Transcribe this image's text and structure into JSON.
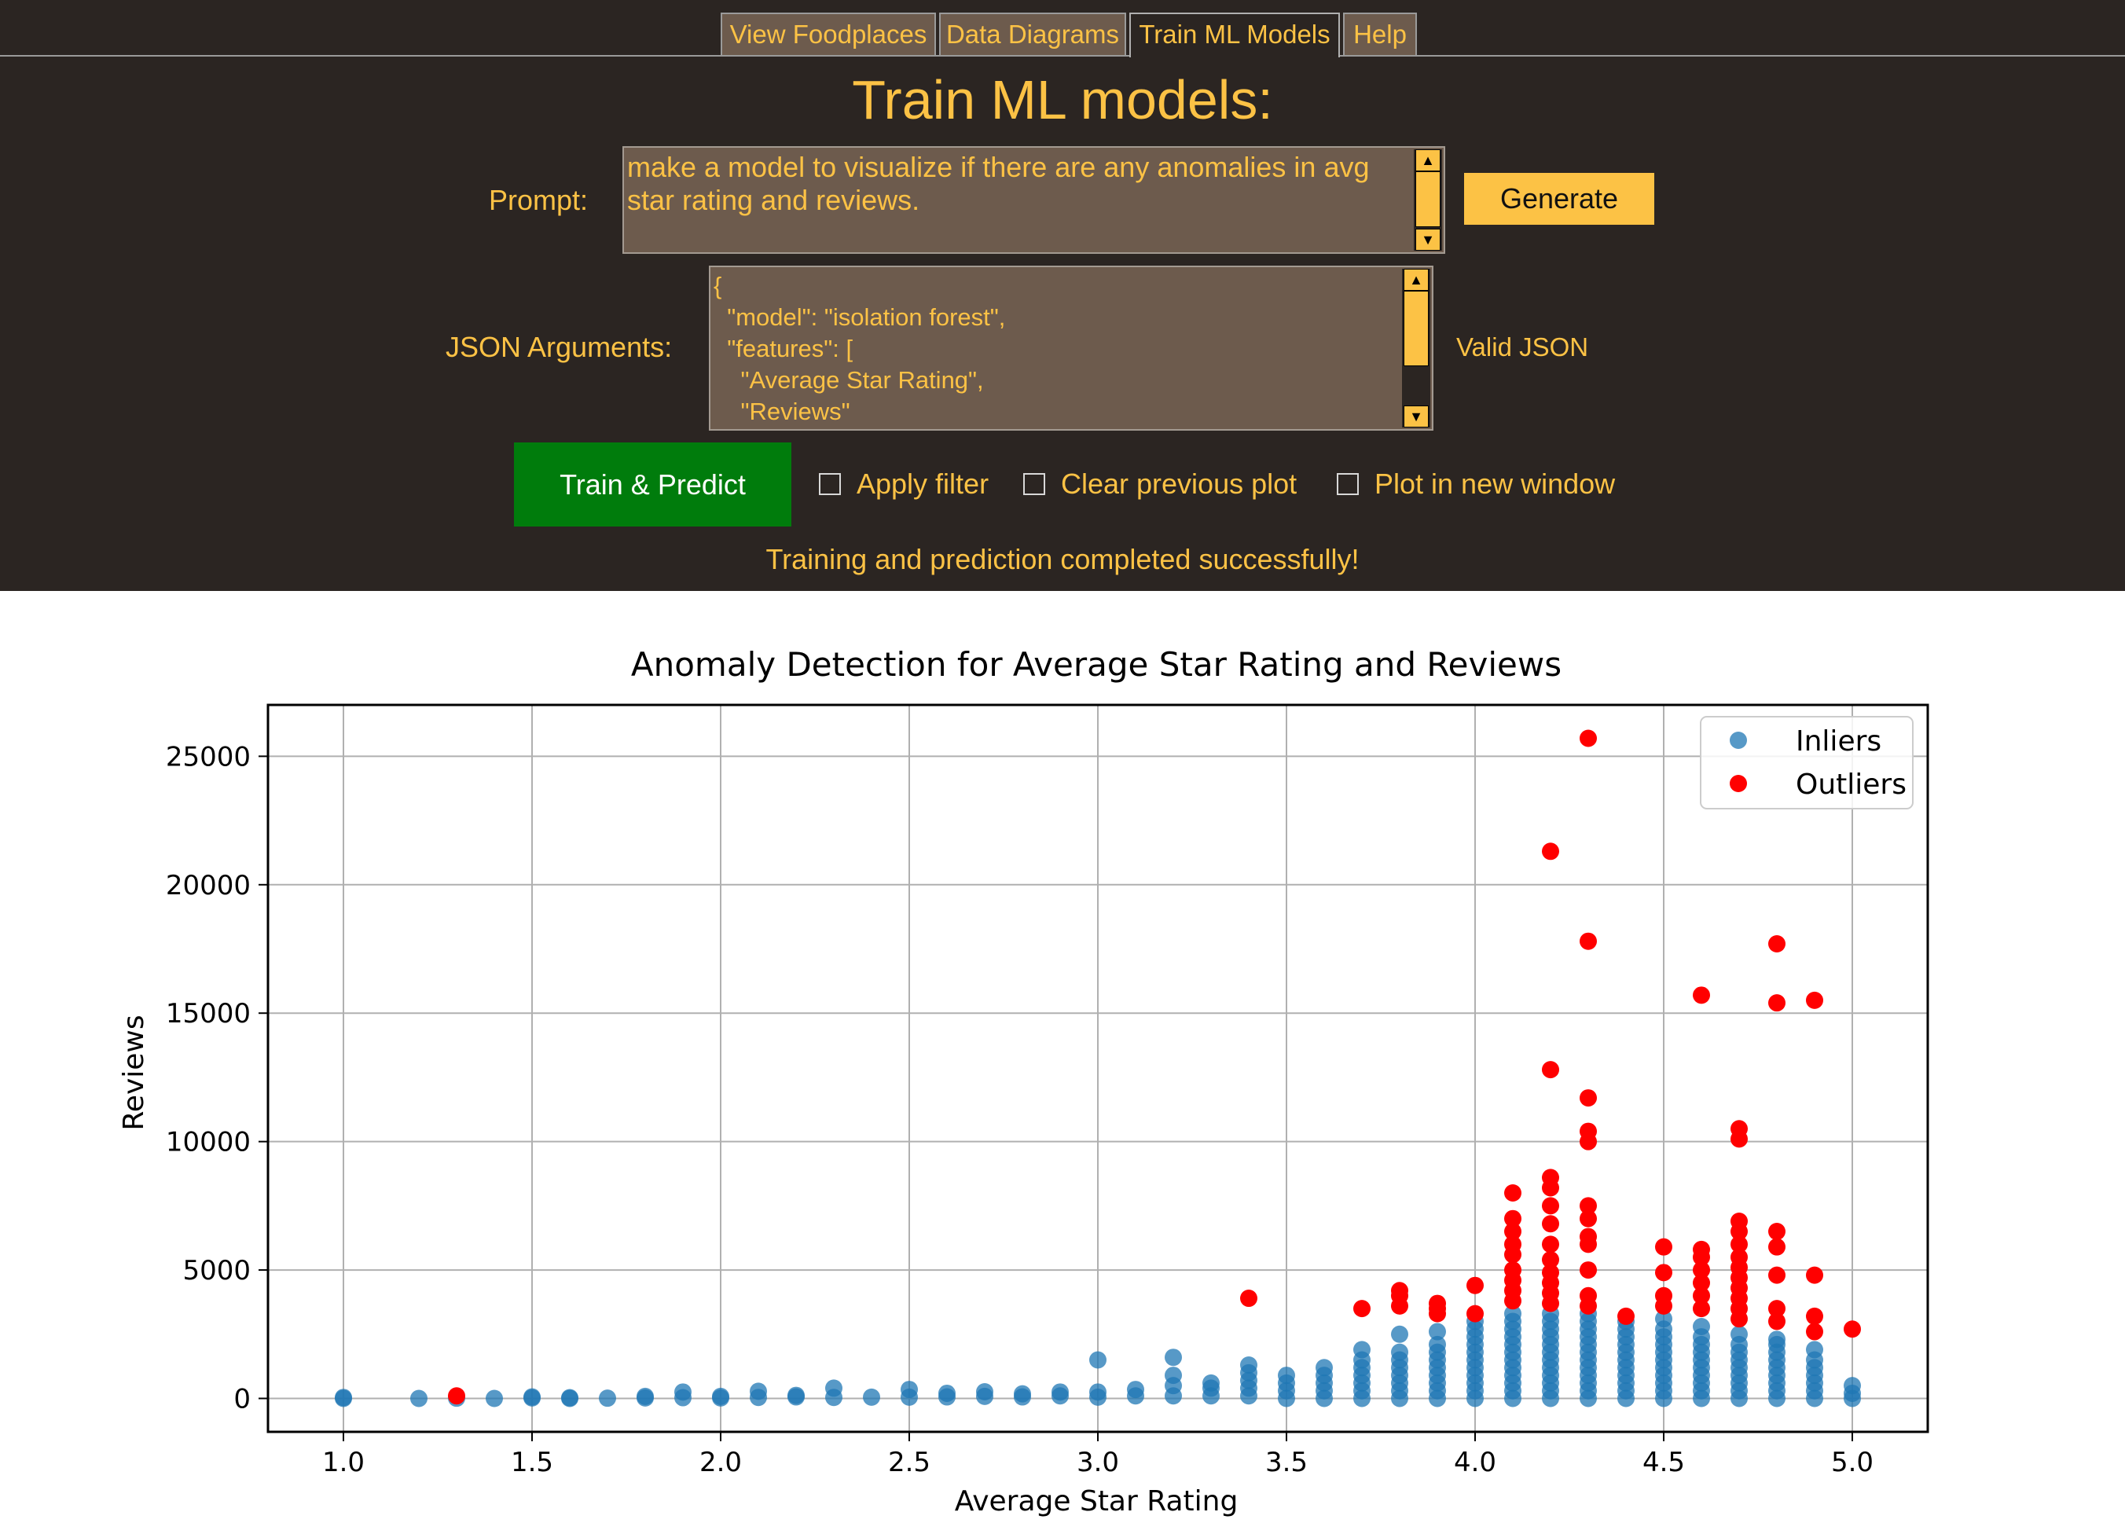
{
  "tabs": [
    {
      "label": "View Foodplaces",
      "active": false
    },
    {
      "label": "Data Diagrams",
      "active": false
    },
    {
      "label": "Train ML Models",
      "active": true
    },
    {
      "label": "Help",
      "active": false
    }
  ],
  "page_title": "Train ML models:",
  "prompt": {
    "label": "Prompt:",
    "value": "make a model to visualize if there are any anomalies in avg star rating and reviews."
  },
  "generate_label": "Generate",
  "json_args": {
    "label": "JSON Arguments:",
    "value": "{\n  \"model\": \"isolation forest\",\n  \"features\": [\n    \"Average Star Rating\",\n    \"Reviews\"",
    "status": "Valid JSON"
  },
  "train_label": "Train & Predict",
  "checkboxes": [
    {
      "label": "Apply filter",
      "checked": false
    },
    {
      "label": "Clear previous plot",
      "checked": false
    },
    {
      "label": "Plot in new window",
      "checked": false
    }
  ],
  "status_message": "Training and prediction completed successfully!",
  "colors": {
    "panel_bg": "#2b2522",
    "accent": "#fcc245",
    "field_bg": "#6d5b4d",
    "train_button": "#007c0c",
    "inlier": "#1f77b4",
    "outlier": "#ff0000"
  },
  "chart_data": {
    "type": "scatter",
    "title": "Anomaly Detection for Average Star Rating and Reviews",
    "xlabel": "Average Star Rating",
    "ylabel": "Reviews",
    "xlim": [
      0.8,
      5.2
    ],
    "ylim": [
      -1300,
      27000
    ],
    "xticks": [
      "1.0",
      "1.5",
      "2.0",
      "2.5",
      "3.0",
      "3.5",
      "4.0",
      "4.5",
      "5.0"
    ],
    "yticks": [
      "0",
      "5000",
      "10000",
      "15000",
      "20000",
      "25000"
    ],
    "grid": true,
    "legend_position": "top-right",
    "series": [
      {
        "name": "Inliers",
        "color": "#1f77b4",
        "alpha": 0.75,
        "points": [
          [
            1.0,
            0
          ],
          [
            1.0,
            40
          ],
          [
            1.2,
            0
          ],
          [
            1.3,
            10
          ],
          [
            1.4,
            0
          ],
          [
            1.5,
            20
          ],
          [
            1.5,
            60
          ],
          [
            1.6,
            0
          ],
          [
            1.6,
            30
          ],
          [
            1.7,
            10
          ],
          [
            1.8,
            20
          ],
          [
            1.8,
            80
          ],
          [
            1.9,
            30
          ],
          [
            1.9,
            250
          ],
          [
            2.0,
            20
          ],
          [
            2.0,
            80
          ],
          [
            2.1,
            40
          ],
          [
            2.1,
            280
          ],
          [
            2.2,
            60
          ],
          [
            2.2,
            120
          ],
          [
            2.3,
            40
          ],
          [
            2.3,
            400
          ],
          [
            2.4,
            50
          ],
          [
            2.5,
            50
          ],
          [
            2.5,
            350
          ],
          [
            2.6,
            60
          ],
          [
            2.6,
            200
          ],
          [
            2.7,
            80
          ],
          [
            2.7,
            260
          ],
          [
            2.8,
            60
          ],
          [
            2.8,
            180
          ],
          [
            2.9,
            100
          ],
          [
            2.9,
            250
          ],
          [
            3.0,
            50
          ],
          [
            3.0,
            250
          ],
          [
            3.0,
            1500
          ],
          [
            3.1,
            100
          ],
          [
            3.1,
            350
          ],
          [
            3.2,
            100
          ],
          [
            3.2,
            500
          ],
          [
            3.2,
            900
          ],
          [
            3.2,
            1600
          ],
          [
            3.3,
            100
          ],
          [
            3.3,
            400
          ],
          [
            3.3,
            600
          ],
          [
            3.4,
            100
          ],
          [
            3.4,
            400
          ],
          [
            3.4,
            700
          ],
          [
            3.4,
            1000
          ],
          [
            3.4,
            1300
          ],
          [
            3.5,
            0
          ],
          [
            3.5,
            300
          ],
          [
            3.5,
            600
          ],
          [
            3.5,
            900
          ],
          [
            3.6,
            0
          ],
          [
            3.6,
            300
          ],
          [
            3.6,
            600
          ],
          [
            3.6,
            900
          ],
          [
            3.6,
            1200
          ],
          [
            3.7,
            0
          ],
          [
            3.7,
            300
          ],
          [
            3.7,
            600
          ],
          [
            3.7,
            900
          ],
          [
            3.7,
            1200
          ],
          [
            3.7,
            1500
          ],
          [
            3.7,
            1900
          ],
          [
            3.8,
            0
          ],
          [
            3.8,
            300
          ],
          [
            3.8,
            600
          ],
          [
            3.8,
            900
          ],
          [
            3.8,
            1200
          ],
          [
            3.8,
            1500
          ],
          [
            3.8,
            1800
          ],
          [
            3.8,
            2500
          ],
          [
            3.9,
            0
          ],
          [
            3.9,
            300
          ],
          [
            3.9,
            600
          ],
          [
            3.9,
            900
          ],
          [
            3.9,
            1200
          ],
          [
            3.9,
            1500
          ],
          [
            3.9,
            1800
          ],
          [
            3.9,
            2100
          ],
          [
            3.9,
            2600
          ],
          [
            4.0,
            0
          ],
          [
            4.0,
            300
          ],
          [
            4.0,
            600
          ],
          [
            4.0,
            900
          ],
          [
            4.0,
            1200
          ],
          [
            4.0,
            1500
          ],
          [
            4.0,
            1800
          ],
          [
            4.0,
            2100
          ],
          [
            4.0,
            2400
          ],
          [
            4.0,
            2700
          ],
          [
            4.0,
            3000
          ],
          [
            4.1,
            0
          ],
          [
            4.1,
            300
          ],
          [
            4.1,
            600
          ],
          [
            4.1,
            900
          ],
          [
            4.1,
            1200
          ],
          [
            4.1,
            1500
          ],
          [
            4.1,
            1800
          ],
          [
            4.1,
            2100
          ],
          [
            4.1,
            2400
          ],
          [
            4.1,
            2700
          ],
          [
            4.1,
            3000
          ],
          [
            4.1,
            3300
          ],
          [
            4.2,
            0
          ],
          [
            4.2,
            300
          ],
          [
            4.2,
            600
          ],
          [
            4.2,
            900
          ],
          [
            4.2,
            1200
          ],
          [
            4.2,
            1500
          ],
          [
            4.2,
            1800
          ],
          [
            4.2,
            2100
          ],
          [
            4.2,
            2400
          ],
          [
            4.2,
            2700
          ],
          [
            4.2,
            3000
          ],
          [
            4.2,
            3300
          ],
          [
            4.3,
            0
          ],
          [
            4.3,
            300
          ],
          [
            4.3,
            600
          ],
          [
            4.3,
            900
          ],
          [
            4.3,
            1200
          ],
          [
            4.3,
            1500
          ],
          [
            4.3,
            1800
          ],
          [
            4.3,
            2100
          ],
          [
            4.3,
            2400
          ],
          [
            4.3,
            2700
          ],
          [
            4.3,
            3000
          ],
          [
            4.3,
            3300
          ],
          [
            4.4,
            0
          ],
          [
            4.4,
            300
          ],
          [
            4.4,
            600
          ],
          [
            4.4,
            900
          ],
          [
            4.4,
            1200
          ],
          [
            4.4,
            1500
          ],
          [
            4.4,
            1800
          ],
          [
            4.4,
            2100
          ],
          [
            4.4,
            2400
          ],
          [
            4.4,
            2700
          ],
          [
            4.4,
            3000
          ],
          [
            4.5,
            0
          ],
          [
            4.5,
            300
          ],
          [
            4.5,
            600
          ],
          [
            4.5,
            900
          ],
          [
            4.5,
            1200
          ],
          [
            4.5,
            1500
          ],
          [
            4.5,
            1800
          ],
          [
            4.5,
            2100
          ],
          [
            4.5,
            2400
          ],
          [
            4.5,
            2700
          ],
          [
            4.5,
            3100
          ],
          [
            4.6,
            0
          ],
          [
            4.6,
            300
          ],
          [
            4.6,
            600
          ],
          [
            4.6,
            900
          ],
          [
            4.6,
            1200
          ],
          [
            4.6,
            1500
          ],
          [
            4.6,
            1800
          ],
          [
            4.6,
            2100
          ],
          [
            4.6,
            2400
          ],
          [
            4.6,
            2800
          ],
          [
            4.7,
            0
          ],
          [
            4.7,
            300
          ],
          [
            4.7,
            600
          ],
          [
            4.7,
            900
          ],
          [
            4.7,
            1200
          ],
          [
            4.7,
            1500
          ],
          [
            4.7,
            1800
          ],
          [
            4.7,
            2100
          ],
          [
            4.7,
            2500
          ],
          [
            4.8,
            0
          ],
          [
            4.8,
            300
          ],
          [
            4.8,
            600
          ],
          [
            4.8,
            900
          ],
          [
            4.8,
            1200
          ],
          [
            4.8,
            1500
          ],
          [
            4.8,
            1800
          ],
          [
            4.8,
            2100
          ],
          [
            4.8,
            2300
          ],
          [
            4.9,
            0
          ],
          [
            4.9,
            300
          ],
          [
            4.9,
            600
          ],
          [
            4.9,
            900
          ],
          [
            4.9,
            1200
          ],
          [
            4.9,
            1500
          ],
          [
            4.9,
            1900
          ],
          [
            5.0,
            0
          ],
          [
            5.0,
            200
          ],
          [
            5.0,
            500
          ]
        ]
      },
      {
        "name": "Outliers",
        "color": "#ff0000",
        "alpha": 1,
        "points": [
          [
            1.3,
            100
          ],
          [
            3.4,
            3900
          ],
          [
            3.7,
            3500
          ],
          [
            3.8,
            3600
          ],
          [
            3.8,
            4000
          ],
          [
            3.8,
            4200
          ],
          [
            3.9,
            3300
          ],
          [
            3.9,
            3500
          ],
          [
            3.9,
            3700
          ],
          [
            4.0,
            3300
          ],
          [
            4.0,
            4400
          ],
          [
            4.1,
            3800
          ],
          [
            4.1,
            4200
          ],
          [
            4.1,
            4600
          ],
          [
            4.1,
            5000
          ],
          [
            4.1,
            5600
          ],
          [
            4.1,
            6000
          ],
          [
            4.1,
            6500
          ],
          [
            4.1,
            7000
          ],
          [
            4.1,
            8000
          ],
          [
            4.2,
            3700
          ],
          [
            4.2,
            4100
          ],
          [
            4.2,
            4500
          ],
          [
            4.2,
            4900
          ],
          [
            4.2,
            5400
          ],
          [
            4.2,
            6000
          ],
          [
            4.2,
            6800
          ],
          [
            4.2,
            7500
          ],
          [
            4.2,
            8200
          ],
          [
            4.2,
            8600
          ],
          [
            4.2,
            12800
          ],
          [
            4.2,
            21300
          ],
          [
            4.3,
            3600
          ],
          [
            4.3,
            4000
          ],
          [
            4.3,
            5000
          ],
          [
            4.3,
            6000
          ],
          [
            4.3,
            6300
          ],
          [
            4.3,
            7000
          ],
          [
            4.3,
            7500
          ],
          [
            4.3,
            10000
          ],
          [
            4.3,
            10400
          ],
          [
            4.3,
            11700
          ],
          [
            4.3,
            17800
          ],
          [
            4.3,
            25700
          ],
          [
            4.4,
            3200
          ],
          [
            4.5,
            3600
          ],
          [
            4.5,
            4000
          ],
          [
            4.5,
            4900
          ],
          [
            4.5,
            5900
          ],
          [
            4.6,
            3500
          ],
          [
            4.6,
            4000
          ],
          [
            4.6,
            4500
          ],
          [
            4.6,
            5000
          ],
          [
            4.6,
            5500
          ],
          [
            4.6,
            5800
          ],
          [
            4.6,
            15700
          ],
          [
            4.7,
            3100
          ],
          [
            4.7,
            3500
          ],
          [
            4.7,
            3900
          ],
          [
            4.7,
            4300
          ],
          [
            4.7,
            4700
          ],
          [
            4.7,
            5100
          ],
          [
            4.7,
            5500
          ],
          [
            4.7,
            6000
          ],
          [
            4.7,
            6500
          ],
          [
            4.7,
            6900
          ],
          [
            4.7,
            10100
          ],
          [
            4.7,
            10500
          ],
          [
            4.8,
            3000
          ],
          [
            4.8,
            3500
          ],
          [
            4.8,
            4800
          ],
          [
            4.8,
            5900
          ],
          [
            4.8,
            6500
          ],
          [
            4.8,
            15400
          ],
          [
            4.8,
            17700
          ],
          [
            4.9,
            2600
          ],
          [
            4.9,
            3200
          ],
          [
            4.9,
            4800
          ],
          [
            4.9,
            15500
          ],
          [
            5.0,
            2700
          ]
        ]
      }
    ]
  }
}
